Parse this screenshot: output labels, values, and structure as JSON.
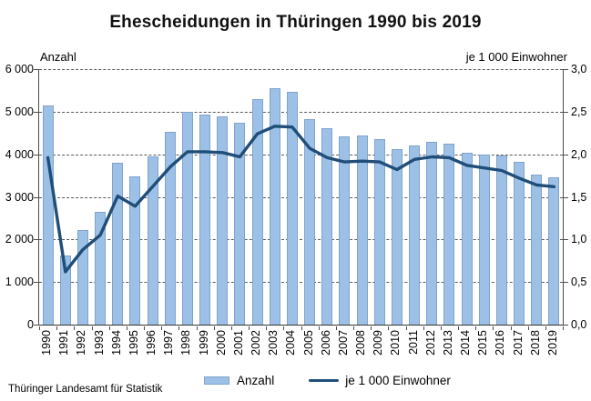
{
  "title": "Ehescheidungen in Thüringen 1990 bis 2019",
  "source": "Thüringer Landesamt für Statistik",
  "legend": {
    "bar_label": "Anzahl",
    "line_label": "je 1 000 Einwohner"
  },
  "colors": {
    "bar_fill": "#9dc1e6",
    "bar_border": "#7fa3cd",
    "line": "#1f4e79",
    "axis": "#4d4d4d"
  },
  "chart_data": {
    "type": "bar",
    "title": "Ehescheidungen in Thüringen 1990 bis 2019",
    "categories": [
      "1990",
      "1991",
      "1992",
      "1993",
      "1994",
      "1995",
      "1996",
      "1997",
      "1998",
      "1999",
      "2000",
      "2001",
      "2002",
      "2003",
      "2004",
      "2005",
      "2006",
      "2007",
      "2008",
      "2009",
      "2010",
      "2011",
      "2012",
      "2013",
      "2014",
      "2015",
      "2016",
      "2017",
      "2018",
      "2019"
    ],
    "series": [
      {
        "name": "Anzahl",
        "type": "bar",
        "axis": "left",
        "values": [
          5150,
          1625,
          2230,
          2650,
          3800,
          3490,
          3940,
          4520,
          5000,
          4940,
          4880,
          4750,
          5300,
          5560,
          5470,
          4820,
          4610,
          4430,
          4440,
          4360,
          4130,
          4215,
          4290,
          4240,
          4030,
          4000,
          3970,
          3830,
          3520,
          3450
        ]
      },
      {
        "name": "je 1 000 Einwohner",
        "type": "line",
        "axis": "right",
        "values": [
          1.96,
          0.62,
          0.88,
          1.05,
          1.51,
          1.39,
          1.62,
          1.85,
          2.03,
          2.03,
          2.02,
          1.97,
          2.24,
          2.33,
          2.32,
          2.07,
          1.96,
          1.91,
          1.92,
          1.91,
          1.82,
          1.94,
          1.97,
          1.96,
          1.87,
          1.84,
          1.81,
          1.72,
          1.64,
          1.62
        ]
      }
    ],
    "left_axis": {
      "label": "Anzahl",
      "min": 0,
      "max": 6000,
      "step": 1000,
      "tick_labels": [
        "0",
        "1 000",
        "2 000",
        "3 000",
        "4 000",
        "5 000",
        "6 000"
      ]
    },
    "right_axis": {
      "label": "je 1 000 Einwohner",
      "min": 0,
      "max": 3.0,
      "step": 0.5,
      "tick_labels": [
        "0,0",
        "0,5",
        "1,0",
        "1,5",
        "2,0",
        "2,5",
        "3,0"
      ]
    },
    "grid": "horizontal-dashed",
    "legend_position": "bottom"
  }
}
